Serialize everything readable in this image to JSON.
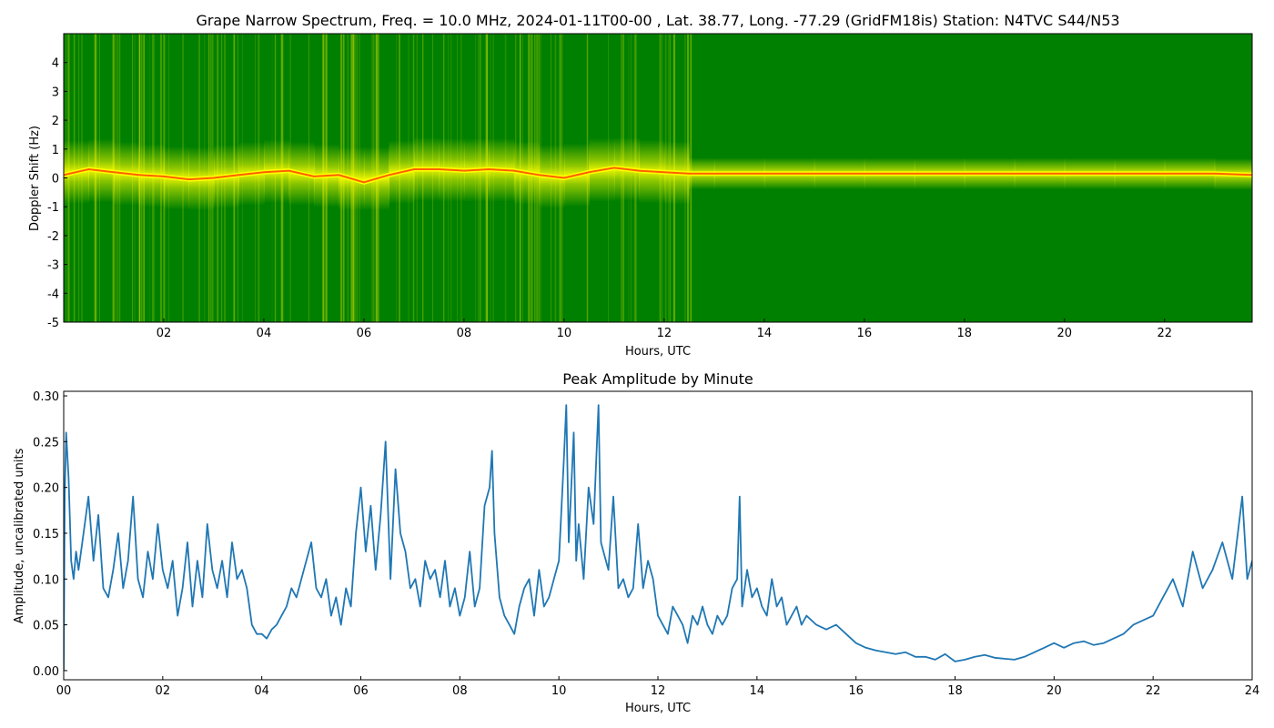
{
  "chart_data": [
    {
      "type": "heatmap",
      "title": "Grape Narrow Spectrum, Freq. = 10.0 MHz, 2024-01-11T00-00 , Lat.  38.77, Long. -77.29 (GridFM18is) Station: N4TVC S44/N53",
      "xlabel": "Hours, UTC",
      "ylabel": "Doppler Shift (Hz)",
      "xlim": [
        0,
        23.75
      ],
      "ylim": [
        -5,
        5
      ],
      "x_ticks": [
        2,
        4,
        6,
        8,
        10,
        12,
        14,
        16,
        18,
        20,
        22
      ],
      "x_tick_labels": [
        "02",
        "04",
        "06",
        "08",
        "10",
        "12",
        "14",
        "16",
        "18",
        "20",
        "22"
      ],
      "y_ticks": [
        -5,
        -4,
        -3,
        -2,
        -1,
        0,
        1,
        2,
        3,
        4
      ],
      "y_tick_labels": [
        "-5",
        "-4",
        "-3",
        "-2",
        "-1",
        "0",
        "1",
        "2",
        "3",
        "4"
      ],
      "colors": {
        "background": "#008000",
        "mid": "#ffff00",
        "high": "#ff4500"
      },
      "peak_trace": {
        "x": [
          0,
          0.5,
          1,
          1.5,
          2,
          2.5,
          3,
          3.5,
          4,
          4.5,
          5,
          5.5,
          6,
          6.5,
          7,
          7.5,
          8,
          8.5,
          9,
          9.5,
          10,
          10.5,
          11,
          11.5,
          12,
          12.5,
          13,
          14,
          15,
          16,
          17,
          18,
          19,
          20,
          21,
          22,
          23,
          23.75
        ],
        "y": [
          0.1,
          0.3,
          0.2,
          0.1,
          0.05,
          -0.05,
          0.0,
          0.1,
          0.2,
          0.25,
          0.05,
          0.1,
          -0.15,
          0.1,
          0.3,
          0.3,
          0.25,
          0.3,
          0.25,
          0.1,
          0.0,
          0.2,
          0.35,
          0.25,
          0.2,
          0.15,
          0.15,
          0.15,
          0.15,
          0.15,
          0.15,
          0.15,
          0.15,
          0.15,
          0.15,
          0.15,
          0.15,
          0.1
        ]
      }
    },
    {
      "type": "line",
      "title": "Peak Amplitude by Minute",
      "xlabel": "Hours, UTC",
      "ylabel": "Amplitude, uncalibrated units",
      "xlim": [
        0,
        24
      ],
      "ylim": [
        -0.01,
        0.305
      ],
      "x_ticks": [
        0,
        2,
        4,
        6,
        8,
        10,
        12,
        14,
        16,
        18,
        20,
        22,
        24
      ],
      "x_tick_labels": [
        "00",
        "02",
        "04",
        "06",
        "08",
        "10",
        "12",
        "14",
        "16",
        "18",
        "20",
        "22",
        "24"
      ],
      "y_ticks": [
        0.0,
        0.05,
        0.1,
        0.15,
        0.2,
        0.25,
        0.3
      ],
      "y_tick_labels": [
        "0.00",
        "0.05",
        "0.10",
        "0.15",
        "0.20",
        "0.25",
        "0.30"
      ],
      "line_color": "#1f77b4",
      "series": [
        {
          "x": [
            0,
            0.02,
            0.05,
            0.1,
            0.15,
            0.2,
            0.25,
            0.3,
            0.4,
            0.5,
            0.6,
            0.7,
            0.8,
            0.9,
            1.0,
            1.1,
            1.2,
            1.3,
            1.4,
            1.5,
            1.6,
            1.7,
            1.8,
            1.9,
            2.0,
            2.1,
            2.2,
            2.3,
            2.4,
            2.5,
            2.6,
            2.7,
            2.8,
            2.9,
            3.0,
            3.1,
            3.2,
            3.3,
            3.4,
            3.5,
            3.6,
            3.7,
            3.8,
            3.9,
            4.0,
            4.1,
            4.2,
            4.3,
            4.4,
            4.5,
            4.6,
            4.7,
            4.8,
            4.9,
            5.0,
            5.1,
            5.2,
            5.3,
            5.4,
            5.5,
            5.6,
            5.7,
            5.8,
            5.9,
            6.0,
            6.1,
            6.2,
            6.3,
            6.4,
            6.5,
            6.6,
            6.7,
            6.8,
            6.9,
            7.0,
            7.1,
            7.2,
            7.3,
            7.4,
            7.5,
            7.6,
            7.7,
            7.8,
            7.9,
            8.0,
            8.1,
            8.2,
            8.3,
            8.4,
            8.5,
            8.6,
            8.65,
            8.7,
            8.8,
            8.9,
            9.0,
            9.1,
            9.2,
            9.3,
            9.4,
            9.5,
            9.6,
            9.7,
            9.8,
            9.9,
            10.0,
            10.1,
            10.15,
            10.2,
            10.3,
            10.35,
            10.4,
            10.5,
            10.6,
            10.7,
            10.8,
            10.85,
            10.9,
            11.0,
            11.1,
            11.2,
            11.3,
            11.4,
            11.5,
            11.6,
            11.7,
            11.8,
            11.9,
            12.0,
            12.1,
            12.2,
            12.3,
            12.4,
            12.5,
            12.6,
            12.7,
            12.8,
            12.9,
            13.0,
            13.1,
            13.2,
            13.3,
            13.4,
            13.5,
            13.6,
            13.65,
            13.7,
            13.8,
            13.9,
            14.0,
            14.1,
            14.2,
            14.3,
            14.4,
            14.5,
            14.6,
            14.7,
            14.8,
            14.9,
            15.0,
            15.2,
            15.4,
            15.6,
            15.8,
            16.0,
            16.2,
            16.4,
            16.6,
            16.8,
            17.0,
            17.2,
            17.4,
            17.6,
            17.8,
            18.0,
            18.2,
            18.4,
            18.6,
            18.8,
            19.0,
            19.2,
            19.4,
            19.6,
            19.8,
            20.0,
            20.2,
            20.4,
            20.6,
            20.8,
            21.0,
            21.2,
            21.4,
            21.6,
            21.8,
            22.0,
            22.2,
            22.4,
            22.6,
            22.8,
            23.0,
            23.2,
            23.4,
            23.6,
            23.8,
            23.9,
            24.0
          ],
          "y": [
            0.0,
            0.19,
            0.26,
            0.21,
            0.12,
            0.1,
            0.13,
            0.11,
            0.15,
            0.19,
            0.12,
            0.17,
            0.09,
            0.08,
            0.11,
            0.15,
            0.09,
            0.12,
            0.19,
            0.1,
            0.08,
            0.13,
            0.1,
            0.16,
            0.11,
            0.09,
            0.12,
            0.06,
            0.09,
            0.14,
            0.07,
            0.12,
            0.08,
            0.16,
            0.11,
            0.09,
            0.12,
            0.08,
            0.14,
            0.1,
            0.11,
            0.09,
            0.05,
            0.04,
            0.04,
            0.035,
            0.045,
            0.05,
            0.06,
            0.07,
            0.09,
            0.08,
            0.1,
            0.12,
            0.14,
            0.09,
            0.08,
            0.1,
            0.06,
            0.08,
            0.05,
            0.09,
            0.07,
            0.15,
            0.2,
            0.13,
            0.18,
            0.11,
            0.17,
            0.25,
            0.1,
            0.22,
            0.15,
            0.13,
            0.09,
            0.1,
            0.07,
            0.12,
            0.1,
            0.11,
            0.08,
            0.12,
            0.07,
            0.09,
            0.06,
            0.08,
            0.13,
            0.07,
            0.09,
            0.18,
            0.2,
            0.24,
            0.15,
            0.08,
            0.06,
            0.05,
            0.04,
            0.07,
            0.09,
            0.1,
            0.06,
            0.11,
            0.07,
            0.08,
            0.1,
            0.12,
            0.23,
            0.29,
            0.14,
            0.26,
            0.12,
            0.16,
            0.1,
            0.2,
            0.16,
            0.29,
            0.14,
            0.13,
            0.11,
            0.19,
            0.09,
            0.1,
            0.08,
            0.09,
            0.16,
            0.09,
            0.12,
            0.1,
            0.06,
            0.05,
            0.04,
            0.07,
            0.06,
            0.05,
            0.03,
            0.06,
            0.05,
            0.07,
            0.05,
            0.04,
            0.06,
            0.05,
            0.06,
            0.09,
            0.1,
            0.19,
            0.07,
            0.11,
            0.08,
            0.09,
            0.07,
            0.06,
            0.1,
            0.07,
            0.08,
            0.05,
            0.06,
            0.07,
            0.05,
            0.06,
            0.05,
            0.045,
            0.05,
            0.04,
            0.03,
            0.025,
            0.022,
            0.02,
            0.018,
            0.02,
            0.015,
            0.015,
            0.012,
            0.018,
            0.01,
            0.012,
            0.015,
            0.017,
            0.014,
            0.013,
            0.012,
            0.015,
            0.02,
            0.025,
            0.03,
            0.025,
            0.03,
            0.032,
            0.028,
            0.03,
            0.035,
            0.04,
            0.05,
            0.055,
            0.06,
            0.08,
            0.1,
            0.07,
            0.13,
            0.09,
            0.11,
            0.14,
            0.1,
            0.19,
            0.1,
            0.12
          ]
        }
      ]
    }
  ]
}
